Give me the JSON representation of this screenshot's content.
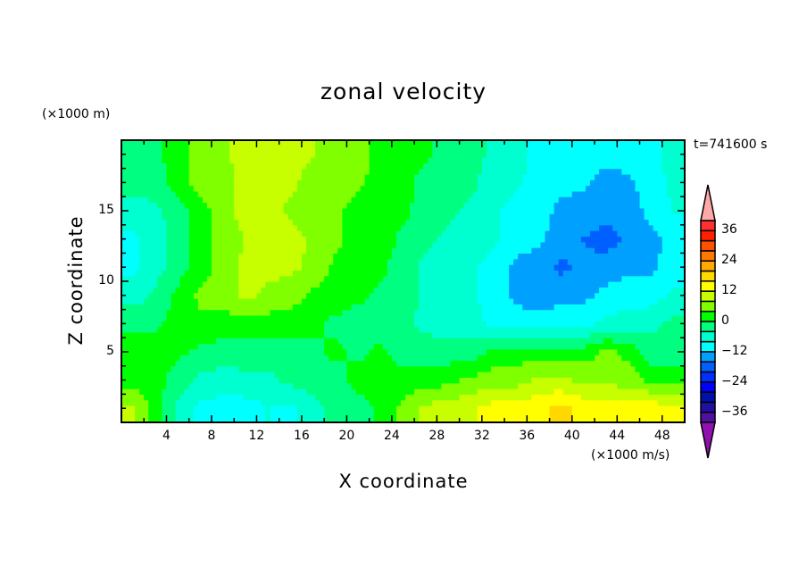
{
  "chart_data": {
    "type": "heatmap",
    "title": "zonal velocity",
    "xlabel": "X coordinate",
    "ylabel": "Z coordinate",
    "x_unit_label": "(×1000 m/s)",
    "y_unit_label": "(×1000 m)",
    "time_label": "t=741600 s",
    "xlim": [
      0,
      50
    ],
    "ylim": [
      0,
      20
    ],
    "x_ticks": [
      "4",
      "8",
      "12",
      "16",
      "20",
      "24",
      "28",
      "32",
      "36",
      "40",
      "44",
      "48"
    ],
    "y_ticks": [
      "5",
      "10",
      "15"
    ],
    "grid_x_centers": [
      1,
      3,
      5,
      7,
      9,
      11,
      13,
      15,
      17,
      19,
      21,
      23,
      25,
      27,
      29,
      31,
      33,
      35,
      37,
      39,
      41,
      43,
      45,
      47,
      49
    ],
    "grid_z_centers_top_to_bottom": [
      19,
      17,
      15,
      13,
      11,
      9,
      7,
      5,
      3,
      1
    ],
    "values": [
      [
        -2,
        -1,
        2,
        6,
        7,
        10,
        10,
        10,
        8,
        6,
        6,
        2,
        2,
        1,
        -2,
        -2,
        -5,
        -6,
        -10,
        -10,
        -10,
        -10,
        -10,
        -10,
        -6
      ],
      [
        -2,
        -2,
        2,
        6,
        6,
        10,
        10,
        9,
        6,
        6,
        5,
        2,
        2,
        -2,
        -2,
        -3,
        -6,
        -7,
        -10,
        -11,
        -11,
        -14,
        -13,
        -10,
        -7
      ],
      [
        -6,
        -5,
        -2,
        2,
        6,
        10,
        10,
        7,
        6,
        5,
        2,
        2,
        1,
        -2,
        -3,
        -5,
        -7,
        -10,
        -10,
        -13,
        -14,
        -14,
        -14,
        -11,
        -8
      ],
      [
        -9,
        -6,
        -2,
        2,
        6,
        8,
        10,
        10,
        7,
        5,
        2,
        2,
        -1,
        -3,
        -5,
        -6,
        -7,
        -10,
        -11,
        -14,
        -16,
        -18,
        -15,
        -13,
        -11
      ],
      [
        -9,
        -6,
        -2,
        2,
        6,
        9,
        9,
        9,
        7,
        3,
        2,
        1,
        -2,
        -5,
        -6,
        -7,
        -10,
        -13,
        -14,
        -17,
        -15,
        -14,
        -13,
        -13,
        -10
      ],
      [
        -6,
        -3,
        1,
        5,
        6,
        9,
        7,
        6,
        3,
        2,
        1,
        -1,
        -2,
        -5,
        -6,
        -7,
        -10,
        -13,
        -14,
        -13,
        -13,
        -11,
        -10,
        -10,
        -7
      ],
      [
        -1,
        -1,
        2,
        3,
        2,
        2,
        2,
        2,
        1,
        -1,
        -2,
        -2,
        -3,
        -5,
        -6,
        -6,
        -9,
        -10,
        -10,
        -10,
        -9,
        -7,
        -6,
        -5,
        -3
      ],
      [
        2,
        2,
        1,
        -1,
        -2,
        -2,
        -2,
        -2,
        -1,
        1,
        -1,
        1,
        -2,
        -2,
        -2,
        -2,
        1,
        2,
        2,
        2,
        2,
        5,
        3,
        -2,
        -2
      ],
      [
        2,
        2,
        -2,
        -5,
        -6,
        -5,
        -5,
        -3,
        -2,
        -2,
        2,
        2,
        2,
        2,
        3,
        5,
        6,
        6,
        9,
        9,
        7,
        7,
        6,
        3,
        2
      ],
      [
        9,
        2,
        -5,
        -9,
        -10,
        -10,
        -8,
        -9,
        -6,
        -2,
        -3,
        2,
        5,
        9,
        10,
        11,
        14,
        14,
        15,
        17,
        15,
        14,
        14,
        15,
        13
      ]
    ],
    "levels": [
      -40,
      -36,
      -32,
      -28,
      -24,
      -20,
      -16,
      -12,
      -8,
      -4,
      0,
      4,
      8,
      12,
      16,
      20,
      24,
      28,
      32,
      36,
      40
    ],
    "colorbar_labels": [
      "36",
      "24",
      "12",
      "0",
      "−12",
      "−24",
      "−36"
    ],
    "colorbar_label_values": [
      36,
      24,
      12,
      0,
      -12,
      -24,
      -36
    ],
    "colors": [
      "#5010a0",
      "#2010a0",
      "#0010a8",
      "#0000ff",
      "#0030ff",
      "#0060ff",
      "#00a0ff",
      "#00ffff",
      "#00ffd0",
      "#00ff80",
      "#00ff00",
      "#80ff00",
      "#c8ff00",
      "#ffff00",
      "#ffd800",
      "#ffa800",
      "#ff7800",
      "#ff5000",
      "#ff2000",
      "#ff3030"
    ],
    "under_color": "#9010b0",
    "over_color": "#ffa8a8"
  }
}
